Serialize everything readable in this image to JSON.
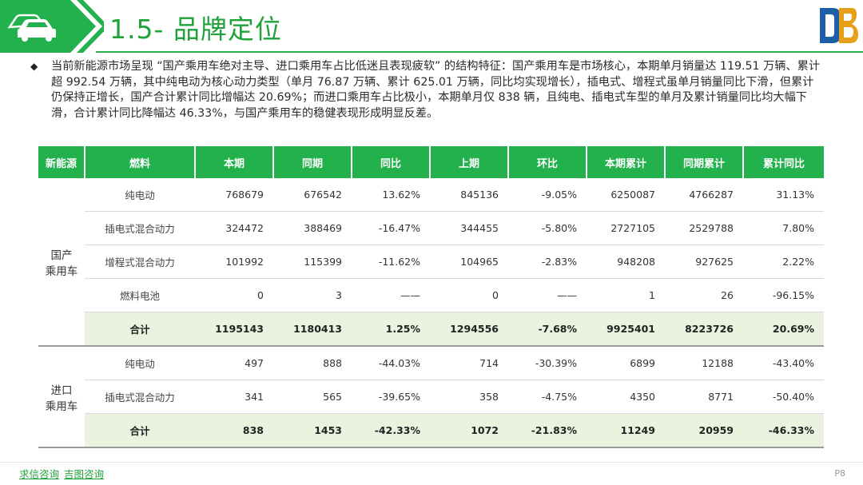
{
  "header": {
    "title": "1.5- 品牌定位",
    "accent_color": "#22b14c"
  },
  "intro": {
    "text": "当前新能源市场呈现 “国产乘用车绝对主导、进口乘用车占比低迷且表现疲软” 的结构特征：国产乘用车是市场核心，本期单月销量达 119.51 万辆、累计超 992.54 万辆，其中纯电动为核心动力类型（单月 76.87 万辆、累计 625.01 万辆，同比均实现增长），插电式、增程式虽单月销量同比下滑，但累计仍保持正增长，国产合计累计同比增幅达 20.69%；而进口乘用车占比极小，本期单月仅 838 辆，且纯电、插电式车型的单月及累计销量同比均大幅下滑，合计累计同比降幅达 46.33%，与国产乘用车的稳健表现形成明显反差。"
  },
  "table": {
    "headers": [
      "新能源",
      "燃料",
      "本期",
      "同期",
      "同比",
      "上期",
      "环比",
      "本期累计",
      "同期累计",
      "累计同比"
    ],
    "groups": [
      {
        "name": "国产\n乘用车",
        "rows": [
          {
            "fuel": "纯电动",
            "cells": [
              "768679",
              "676542",
              "13.62%",
              "845136",
              "-9.05%",
              "6250087",
              "4766287",
              "31.13%"
            ],
            "total": false
          },
          {
            "fuel": "插电式混合动力",
            "cells": [
              "324472",
              "388469",
              "-16.47%",
              "344455",
              "-5.80%",
              "2727105",
              "2529788",
              "7.80%"
            ],
            "total": false
          },
          {
            "fuel": "增程式混合动力",
            "cells": [
              "101992",
              "115399",
              "-11.62%",
              "104965",
              "-2.83%",
              "948208",
              "927625",
              "2.22%"
            ],
            "total": false
          },
          {
            "fuel": "燃料电池",
            "cells": [
              "0",
              "3",
              "——",
              "0",
              "——",
              "1",
              "26",
              "-96.15%"
            ],
            "total": false
          },
          {
            "fuel": "合计",
            "cells": [
              "1195143",
              "1180413",
              "1.25%",
              "1294556",
              "-7.68%",
              "9925401",
              "8223726",
              "20.69%"
            ],
            "total": true
          }
        ]
      },
      {
        "name": "进口\n乘用车",
        "rows": [
          {
            "fuel": "纯电动",
            "cells": [
              "497",
              "888",
              "-44.03%",
              "714",
              "-30.39%",
              "6899",
              "12188",
              "-43.40%"
            ],
            "total": false
          },
          {
            "fuel": "插电式混合动力",
            "cells": [
              "341",
              "565",
              "-39.65%",
              "358",
              "-4.75%",
              "4350",
              "8771",
              "-50.40%"
            ],
            "total": false
          },
          {
            "fuel": "合计",
            "cells": [
              "838",
              "1453",
              "-42.33%",
              "1072",
              "-21.83%",
              "11249",
              "20959",
              "-46.33%"
            ],
            "total": true
          }
        ]
      }
    ]
  },
  "footer": {
    "links": [
      "求信咨询",
      "吉图咨询"
    ],
    "page": "P8"
  },
  "icons": {
    "header": "car-icon",
    "logo": "brand-logo-icon",
    "bullet": "diamond-bullet-icon"
  }
}
